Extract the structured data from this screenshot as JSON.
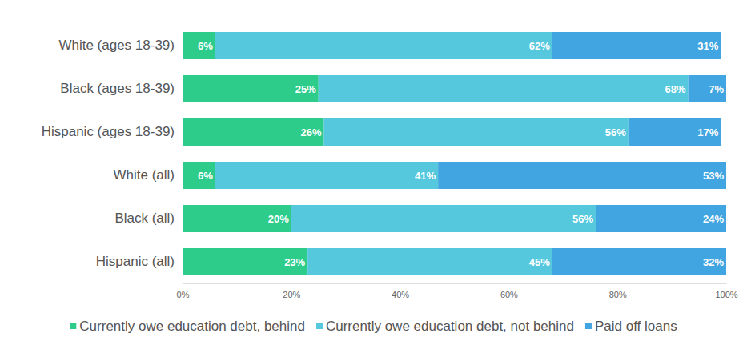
{
  "chart_data": {
    "type": "bar",
    "orientation": "horizontal",
    "stacked": true,
    "data_labels": true,
    "categories": [
      "White (ages 18-39)",
      "Black (ages 18-39)",
      "Hispanic (ages 18-39)",
      "White (all)",
      "Black (all)",
      "Hispanic (all)"
    ],
    "series": [
      {
        "name": "Currently owe education debt, behind",
        "color": "#2ecc8b",
        "values": [
          6,
          25,
          26,
          6,
          20,
          23
        ],
        "value_labels": [
          "6%",
          "25%",
          "26%",
          "6%",
          "20%",
          "23%"
        ]
      },
      {
        "name": "Currently owe education debt, not behind",
        "color": "#55c8dd",
        "values": [
          62,
          68,
          56,
          41,
          56,
          45
        ],
        "value_labels": [
          "62%",
          "68%",
          "56%",
          "41%",
          "56%",
          "45%"
        ]
      },
      {
        "name": "Paid off loans",
        "color": "#41a5e1",
        "values": [
          31,
          7,
          17,
          53,
          24,
          32
        ],
        "value_labels": [
          "31%",
          "7%",
          "17%",
          "53%",
          "24%",
          "32%"
        ]
      }
    ],
    "xlim": [
      0,
      100
    ],
    "xticks": [
      {
        "value": 0,
        "label": "0%"
      },
      {
        "value": 20,
        "label": "20%"
      },
      {
        "value": 40,
        "label": "40%"
      },
      {
        "value": 60,
        "label": "60%"
      },
      {
        "value": 80,
        "label": "80%"
      },
      {
        "value": 100,
        "label": "100%"
      }
    ],
    "legend": "bottom"
  }
}
